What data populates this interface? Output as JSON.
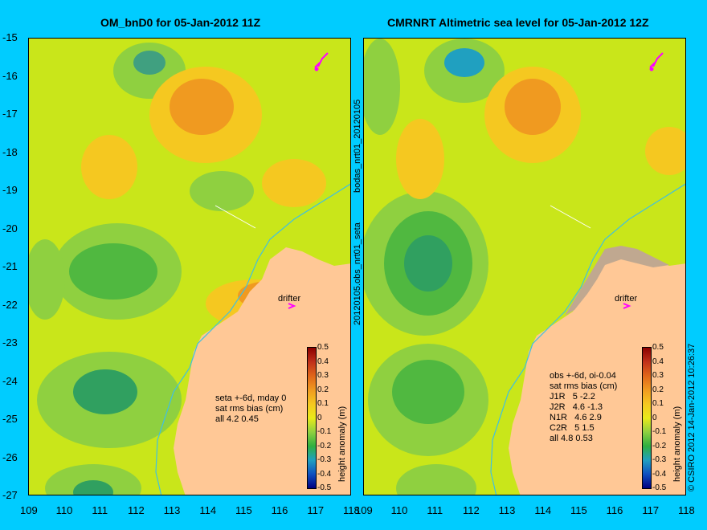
{
  "panels": [
    {
      "title": "OM_bnD0 for 05-Jan-2012 11Z",
      "annotation": "seta +-6d, mday 0\nsat rms bias (cm)\nall 4.2 0.45",
      "drifter_label": "drifter",
      "side_label": "20120105.obs_nrt01_seta"
    },
    {
      "title": "CMRNRT Altimetric sea level  for 05-Jan-2012 12Z",
      "annotation": "obs +-6d, oi-0.04\nsat rms bias (cm)\nJ1R   5 -2.2\nJ2R   4.6 -1.3\nN1R   4.6 2.9\nC2R   5 1.5\nall 4.8 0.53",
      "drifter_label": "drifter",
      "side_label": "bodas_nrt01_20120105"
    }
  ],
  "y_ticks": [
    "-15",
    "-16",
    "-17",
    "-18",
    "-19",
    "-20",
    "-21",
    "-22",
    "-23",
    "-24",
    "-25",
    "-26",
    "-27"
  ],
  "x_ticks": [
    "109",
    "110",
    "111",
    "112",
    "113",
    "114",
    "115",
    "116",
    "117",
    "118"
  ],
  "colorbar": {
    "label": "height anomaly (m)",
    "ticks": [
      "0.5",
      "0.4",
      "0.3",
      "0.2",
      "0.1",
      "0",
      "-0.1",
      "-0.2",
      "-0.3",
      "-0.4",
      "-0.5"
    ],
    "colors": [
      "#8b0000",
      "#c0301a",
      "#e0661a",
      "#f09a20",
      "#f5c820",
      "#eaea1a",
      "#8fd040",
      "#30b040",
      "#20a0c0",
      "#1050c0",
      "#000080"
    ]
  },
  "copyright": "© CSIRO 2012   14-Jan-2012 10:26:37",
  "colors": {
    "background": "#00ccff",
    "land": "#ffc896",
    "sea_base": "#c9e61a",
    "drifter": "#ff00ff"
  }
}
